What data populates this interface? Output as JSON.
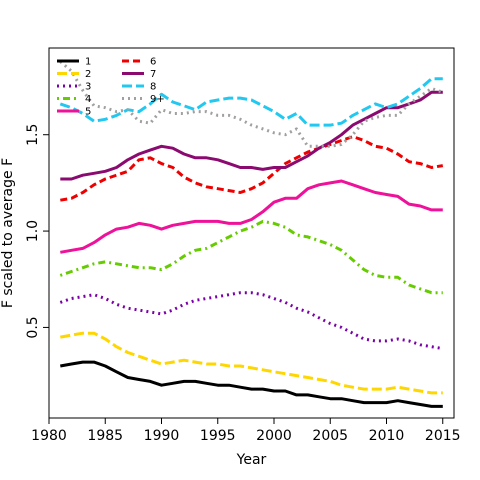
{
  "chart_data": {
    "type": "line",
    "title": "",
    "xlabel": "Year",
    "ylabel": "F scaled to average F",
    "xlim": [
      1980,
      2016
    ],
    "ylim": [
      0.03,
      1.95
    ],
    "xticks": [
      1980,
      1985,
      1990,
      1995,
      2000,
      2005,
      2010,
      2015
    ],
    "yticks": [
      0.5,
      1.0,
      1.5
    ],
    "ytick_labels": [
      "0.5",
      "1.0",
      "1.5"
    ],
    "grid": false,
    "legend": {
      "placement": "top-left",
      "columns": 2,
      "entries": [
        "1",
        "2",
        "3",
        "4",
        "5",
        "6",
        "7",
        "8",
        "9+"
      ]
    },
    "x": [
      1981,
      1982,
      1983,
      1984,
      1985,
      1986,
      1987,
      1988,
      1989,
      1990,
      1991,
      1992,
      1993,
      1994,
      1995,
      1996,
      1997,
      1998,
      1999,
      2000,
      2001,
      2002,
      2003,
      2004,
      2005,
      2006,
      2007,
      2008,
      2009,
      2010,
      2011,
      2012,
      2013,
      2014,
      2015
    ],
    "series": [
      {
        "name": "1",
        "color": "#000000",
        "dash": "solid",
        "values": [
          0.3,
          0.31,
          0.32,
          0.32,
          0.3,
          0.27,
          0.24,
          0.23,
          0.22,
          0.2,
          0.21,
          0.22,
          0.22,
          0.21,
          0.2,
          0.2,
          0.19,
          0.18,
          0.18,
          0.17,
          0.17,
          0.15,
          0.15,
          0.14,
          0.13,
          0.13,
          0.12,
          0.11,
          0.11,
          0.11,
          0.12,
          0.11,
          0.1,
          0.09,
          0.09
        ]
      },
      {
        "name": "2",
        "color": "#FFD700",
        "dash": "long",
        "values": [
          0.45,
          0.46,
          0.47,
          0.47,
          0.44,
          0.4,
          0.37,
          0.35,
          0.33,
          0.31,
          0.32,
          0.33,
          0.32,
          0.31,
          0.31,
          0.3,
          0.3,
          0.29,
          0.28,
          0.27,
          0.26,
          0.25,
          0.24,
          0.23,
          0.22,
          0.2,
          0.19,
          0.18,
          0.18,
          0.18,
          0.19,
          0.18,
          0.17,
          0.16,
          0.16
        ]
      },
      {
        "name": "3",
        "color": "#7B00A8",
        "dash": "dotted",
        "values": [
          0.63,
          0.65,
          0.66,
          0.67,
          0.65,
          0.62,
          0.6,
          0.59,
          0.58,
          0.57,
          0.59,
          0.62,
          0.64,
          0.65,
          0.66,
          0.67,
          0.68,
          0.68,
          0.67,
          0.65,
          0.63,
          0.6,
          0.58,
          0.55,
          0.52,
          0.5,
          0.47,
          0.44,
          0.43,
          0.43,
          0.44,
          0.43,
          0.41,
          0.4,
          0.39
        ]
      },
      {
        "name": "4",
        "color": "#66CC00",
        "dash": "dashdot",
        "values": [
          0.77,
          0.79,
          0.81,
          0.83,
          0.84,
          0.83,
          0.82,
          0.81,
          0.81,
          0.8,
          0.83,
          0.87,
          0.9,
          0.91,
          0.94,
          0.97,
          1.0,
          1.02,
          1.05,
          1.04,
          1.02,
          0.98,
          0.97,
          0.95,
          0.93,
          0.9,
          0.85,
          0.8,
          0.77,
          0.76,
          0.76,
          0.72,
          0.7,
          0.68,
          0.68
        ]
      },
      {
        "name": "5",
        "color": "#EE1199",
        "dash": "solid",
        "values": [
          0.89,
          0.9,
          0.91,
          0.94,
          0.98,
          1.01,
          1.02,
          1.04,
          1.03,
          1.01,
          1.03,
          1.04,
          1.05,
          1.05,
          1.05,
          1.04,
          1.04,
          1.06,
          1.1,
          1.15,
          1.17,
          1.17,
          1.22,
          1.24,
          1.25,
          1.26,
          1.24,
          1.22,
          1.2,
          1.19,
          1.18,
          1.14,
          1.13,
          1.11,
          1.11
        ]
      },
      {
        "name": "6",
        "color": "#EE0000",
        "dash": "dashed",
        "values": [
          1.16,
          1.17,
          1.2,
          1.24,
          1.27,
          1.29,
          1.31,
          1.37,
          1.38,
          1.35,
          1.33,
          1.28,
          1.25,
          1.23,
          1.22,
          1.21,
          1.2,
          1.22,
          1.25,
          1.3,
          1.35,
          1.38,
          1.41,
          1.43,
          1.45,
          1.47,
          1.49,
          1.47,
          1.44,
          1.43,
          1.4,
          1.36,
          1.35,
          1.33,
          1.34
        ]
      },
      {
        "name": "7",
        "color": "#8B0A70",
        "dash": "solid",
        "values": [
          1.27,
          1.27,
          1.29,
          1.3,
          1.31,
          1.33,
          1.37,
          1.4,
          1.42,
          1.44,
          1.43,
          1.4,
          1.38,
          1.38,
          1.37,
          1.35,
          1.33,
          1.33,
          1.32,
          1.33,
          1.33,
          1.36,
          1.39,
          1.43,
          1.46,
          1.5,
          1.55,
          1.58,
          1.61,
          1.64,
          1.64,
          1.66,
          1.68,
          1.72,
          1.72
        ]
      },
      {
        "name": "8",
        "color": "#22C8F0",
        "dash": "long",
        "values": [
          1.66,
          1.64,
          1.61,
          1.57,
          1.58,
          1.6,
          1.63,
          1.62,
          1.66,
          1.71,
          1.67,
          1.65,
          1.63,
          1.67,
          1.68,
          1.69,
          1.69,
          1.68,
          1.65,
          1.62,
          1.58,
          1.61,
          1.55,
          1.55,
          1.55,
          1.56,
          1.6,
          1.63,
          1.66,
          1.64,
          1.66,
          1.7,
          1.74,
          1.79,
          1.79
        ]
      },
      {
        "name": "9+",
        "color": "#A0A0A0",
        "dash": "dotted",
        "values": [
          1.88,
          1.83,
          1.73,
          1.65,
          1.64,
          1.62,
          1.63,
          1.57,
          1.56,
          1.63,
          1.61,
          1.61,
          1.62,
          1.62,
          1.6,
          1.6,
          1.58,
          1.55,
          1.53,
          1.51,
          1.5,
          1.53,
          1.44,
          1.44,
          1.44,
          1.45,
          1.5,
          1.57,
          1.59,
          1.6,
          1.6,
          1.66,
          1.7,
          1.74,
          1.72
        ]
      }
    ]
  }
}
